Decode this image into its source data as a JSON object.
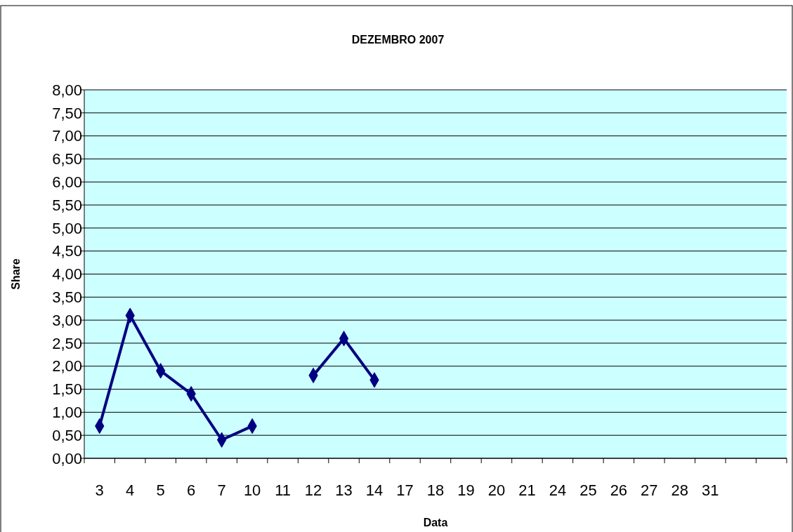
{
  "chart_data": {
    "type": "line",
    "title": "DEZEMBRO 2007",
    "xlabel": "Data",
    "ylabel": "Share",
    "categories": [
      "3",
      "4",
      "5",
      "6",
      "7",
      "10",
      "11",
      "12",
      "13",
      "14",
      "17",
      "18",
      "19",
      "20",
      "21",
      "24",
      "25",
      "26",
      "27",
      "28",
      "31",
      null,
      null
    ],
    "series": [
      {
        "color": "#000080",
        "values": [
          0.7,
          3.1,
          1.9,
          1.4,
          0.4,
          0.7,
          null,
          1.8,
          2.6,
          1.7,
          null,
          null,
          null,
          null,
          null,
          null,
          null,
          null,
          null,
          null,
          null,
          null,
          null
        ]
      }
    ],
    "ylim": [
      0,
      8
    ],
    "yticks": [
      {
        "value": 0,
        "label": "0,00"
      },
      {
        "value": 0.5,
        "label": "0,50"
      },
      {
        "value": 1,
        "label": "1,00"
      },
      {
        "value": 1.5,
        "label": "1,50"
      },
      {
        "value": 2,
        "label": "2,00"
      },
      {
        "value": 2.5,
        "label": "2,50"
      },
      {
        "value": 3,
        "label": "3,00"
      },
      {
        "value": 3.5,
        "label": "3,50"
      },
      {
        "value": 4,
        "label": "4,00"
      },
      {
        "value": 4.5,
        "label": "4,50"
      },
      {
        "value": 5,
        "label": "5,00"
      },
      {
        "value": 5.5,
        "label": "5,50"
      },
      {
        "value": 6,
        "label": "6,00"
      },
      {
        "value": 6.5,
        "label": "6,50"
      },
      {
        "value": 7,
        "label": "7,00"
      },
      {
        "value": 7.5,
        "label": "7,50"
      },
      {
        "value": 8,
        "label": "8,00"
      }
    ],
    "grid": "y",
    "marker": "diamond",
    "line_style": "solid"
  }
}
